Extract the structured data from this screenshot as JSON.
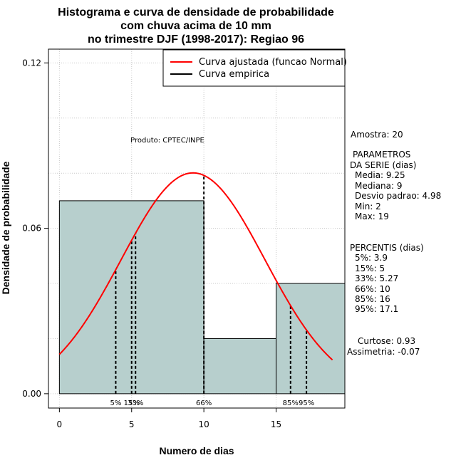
{
  "chart_data": {
    "type": "bar",
    "title_lines": [
      "Histograma e curva de densidade de probabilidade",
      "com chuva acima de 10 mm",
      "no trimestre DJF (1998-2017): Regiao 96"
    ],
    "xlabel": "Numero de dias",
    "ylabel": "Densidade de probabilidade",
    "xlim": [
      -0.7576,
      19.758
    ],
    "ylim": [
      -0.0052,
      0.125
    ],
    "xticks": [
      0,
      5,
      10,
      15
    ],
    "yticks": [
      0.0,
      0.06,
      0.12
    ],
    "ytick_labels": [
      "0.00",
      "0.06",
      "0.12"
    ],
    "grid": true,
    "hist": {
      "bins": [
        {
          "x0": 0,
          "x1": 10,
          "density": 0.07
        },
        {
          "x0": 10,
          "x1": 15,
          "density": 0.02
        },
        {
          "x0": 15,
          "x1": 19.758,
          "density": 0.04
        }
      ],
      "fill": "#b7cfcd"
    },
    "fit_curve": {
      "name": "Curva ajustada (funcao Normal)",
      "mean": 9.25,
      "sd": 4.98,
      "x_range": [
        0,
        18.9
      ],
      "color": "#ff0000"
    },
    "empirical_label": "Curva empirica",
    "percentiles": [
      {
        "label": "5%",
        "x": 3.9
      },
      {
        "label": "15%",
        "x": 5
      },
      {
        "label": "33%",
        "x": 5.27
      },
      {
        "label": "66%",
        "x": 10
      },
      {
        "label": "85%",
        "x": 16
      },
      {
        "label": "95%",
        "x": 17.1
      }
    ],
    "legend": {
      "position": "top-right",
      "entries": [
        "Curva ajustada (funcao Normal)",
        "Curva empirica"
      ]
    },
    "product": "Produto: CPTEC/INPE",
    "stats": {
      "amostra": "Amostra: 20",
      "param_title_1": "PARAMETROS",
      "param_title_2": "DA SERIE (dias)",
      "media": "Media: 9.25",
      "mediana": "Mediana: 9",
      "desvio": "Desvio padrao: 4.98",
      "min": "Min: 2",
      "max": "Max: 19",
      "perc_title": "PERCENTIS (dias)",
      "p5": "5%: 3.9",
      "p15": "15%: 5",
      "p33": "33%: 5.27",
      "p66": "66%: 10",
      "p85": "85%: 16",
      "p95": "95%: 17.1",
      "curtose": "Curtose: 0.93",
      "assimetria": "Assimetria: -0.07"
    }
  }
}
